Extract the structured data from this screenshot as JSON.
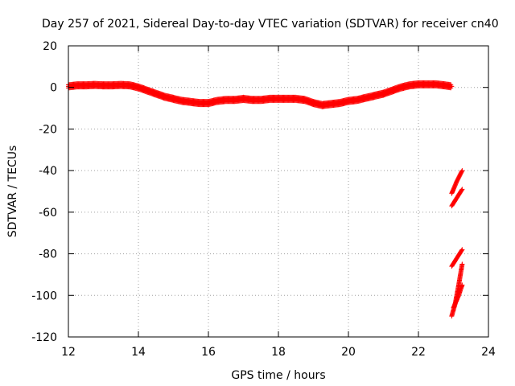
{
  "chart_data": {
    "type": "scatter",
    "title": "Day 257 of 2021, Sidereal Day-to-day VTEC variation (SDTVAR) for receiver cn40",
    "xlabel": "GPS time / hours",
    "ylabel": "SDTVAR / TECUs",
    "xlim": [
      12,
      24
    ],
    "ylim": [
      -120,
      20
    ],
    "xticks": [
      12,
      14,
      16,
      18,
      20,
      22,
      24
    ],
    "yticks": [
      20,
      0,
      -20,
      -40,
      -60,
      -80,
      -100,
      -120
    ],
    "grid": true,
    "marker": "plus",
    "series": [
      {
        "name": "main-trace",
        "color": "#ff0000",
        "x": [
          12.0,
          12.25,
          12.5,
          12.75,
          13.0,
          13.25,
          13.5,
          13.75,
          14.0,
          14.25,
          14.5,
          14.75,
          15.0,
          15.25,
          15.5,
          15.75,
          16.0,
          16.25,
          16.5,
          16.75,
          17.0,
          17.25,
          17.5,
          17.75,
          18.0,
          18.25,
          18.5,
          18.75,
          19.0,
          19.25,
          19.5,
          19.75,
          20.0,
          20.25,
          20.5,
          20.75,
          21.0,
          21.25,
          21.5,
          21.75,
          22.0,
          22.25,
          22.5,
          22.75,
          22.95
        ],
        "y": [
          0.5,
          1.0,
          1.0,
          1.2,
          1.0,
          1.0,
          1.2,
          1.0,
          0.0,
          -1.5,
          -3.0,
          -4.5,
          -5.5,
          -6.5,
          -7.0,
          -7.5,
          -7.5,
          -6.5,
          -6.0,
          -6.0,
          -5.5,
          -6.0,
          -6.0,
          -5.5,
          -5.5,
          -5.5,
          -5.5,
          -6.0,
          -7.5,
          -8.5,
          -8.0,
          -7.5,
          -6.5,
          -6.0,
          -5.0,
          -4.0,
          -3.0,
          -1.5,
          0.0,
          1.0,
          1.5,
          1.5,
          1.5,
          1.0,
          0.5
        ]
      },
      {
        "name": "segment-a",
        "color": "#ff0000",
        "x": [
          22.95,
          23.1,
          23.25
        ],
        "y": [
          -51,
          -45,
          -40
        ]
      },
      {
        "name": "segment-b",
        "color": "#ff0000",
        "x": [
          22.95,
          23.1,
          23.25
        ],
        "y": [
          -57,
          -53,
          -49
        ]
      },
      {
        "name": "segment-c",
        "color": "#ff0000",
        "x": [
          22.95,
          23.1,
          23.25
        ],
        "y": [
          -86,
          -82,
          -78
        ]
      },
      {
        "name": "segment-d",
        "color": "#ff0000",
        "x": [
          22.95,
          23.05,
          23.15,
          23.25
        ],
        "y": [
          -110,
          -104,
          -95,
          -85
        ]
      },
      {
        "name": "segment-e",
        "color": "#ff0000",
        "x": [
          23.0,
          23.15,
          23.25
        ],
        "y": [
          -106,
          -100,
          -95
        ]
      }
    ]
  }
}
